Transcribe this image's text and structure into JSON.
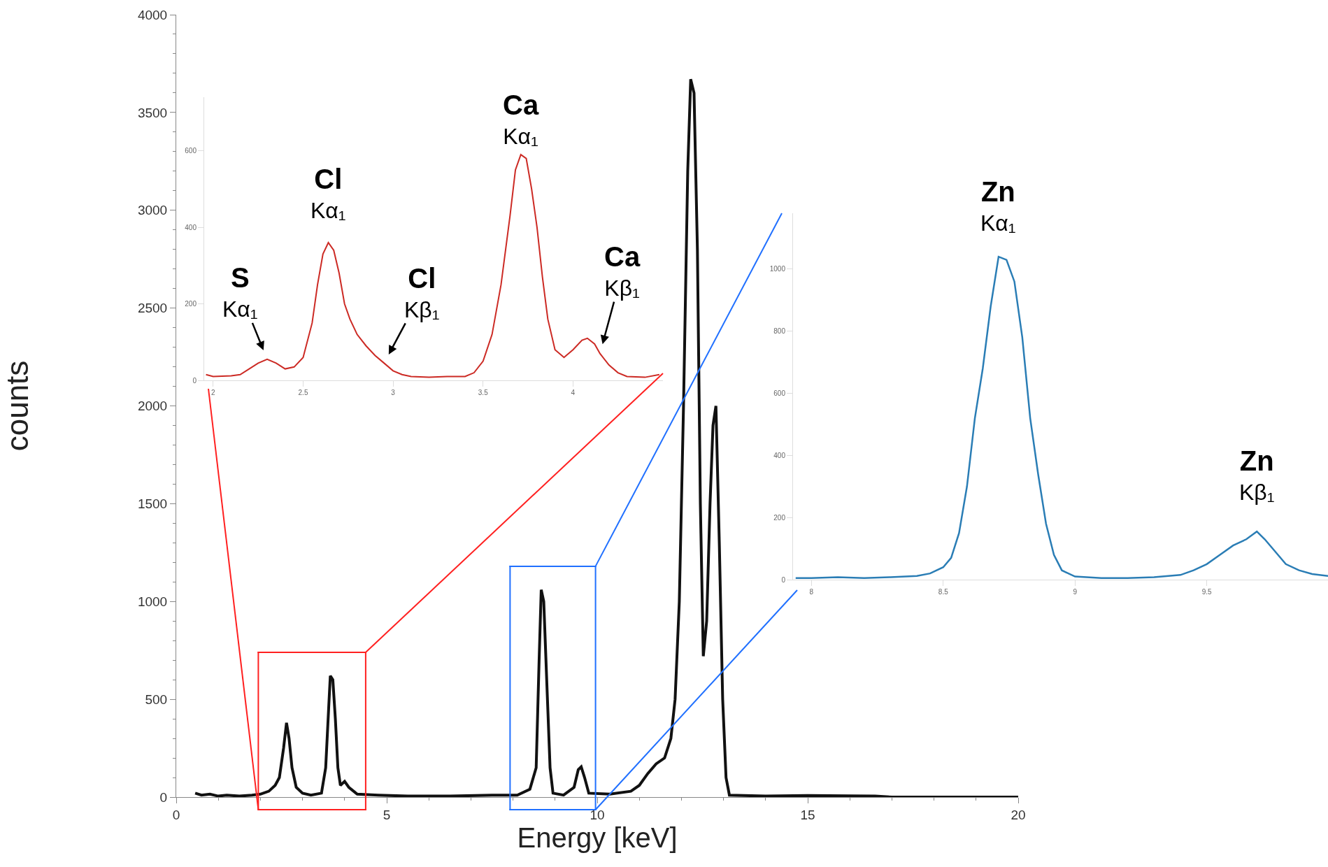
{
  "chart_data": [
    {
      "type": "line",
      "xlabel": "Energy [keV]",
      "ylabel": "counts",
      "color": "#111111",
      "marker": "none",
      "grid": false,
      "x": [
        0.45,
        0.6,
        0.8,
        1.0,
        1.2,
        1.5,
        1.8,
        2.0,
        2.2,
        2.35,
        2.45,
        2.55,
        2.62,
        2.68,
        2.75,
        2.85,
        3.0,
        3.2,
        3.45,
        3.55,
        3.62,
        3.66,
        3.72,
        3.78,
        3.84,
        3.9,
        4.0,
        4.1,
        4.3,
        4.8,
        5.5,
        6.5,
        7.5,
        8.1,
        8.4,
        8.55,
        8.62,
        8.67,
        8.73,
        8.8,
        8.88,
        8.95,
        9.2,
        9.45,
        9.55,
        9.62,
        9.7,
        9.8,
        10.3,
        10.8,
        11.0,
        11.2,
        11.4,
        11.6,
        11.75,
        11.85,
        11.95,
        12.05,
        12.15,
        12.22,
        12.3,
        12.38,
        12.45,
        12.52,
        12.6,
        12.68,
        12.75,
        12.82,
        12.9,
        12.98,
        13.06,
        13.14,
        14,
        15,
        16,
        16.6,
        17,
        20
      ],
      "values": [
        20,
        10,
        15,
        5,
        10,
        5,
        10,
        15,
        30,
        60,
        100,
        250,
        380,
        300,
        150,
        50,
        20,
        10,
        20,
        150,
        450,
        620,
        600,
        400,
        150,
        60,
        80,
        50,
        15,
        10,
        5,
        5,
        10,
        10,
        40,
        150,
        700,
        1060,
        1000,
        600,
        150,
        20,
        10,
        50,
        140,
        155,
        100,
        20,
        15,
        30,
        60,
        120,
        170,
        200,
        300,
        500,
        1000,
        2000,
        3200,
        3670,
        3600,
        2800,
        1500,
        720,
        900,
        1500,
        1900,
        2000,
        1300,
        500,
        100,
        10,
        5,
        8,
        6,
        5,
        0,
        0
      ],
      "xlim": [
        0,
        20
      ],
      "ylim": [
        0,
        4000
      ],
      "xticks": [
        0,
        {
          "value": 1,
          "label": null
        },
        {
          "value": 2,
          "label": null
        },
        {
          "value": 3,
          "label": null
        },
        {
          "value": 4,
          "label": null
        },
        5,
        {
          "value": 6,
          "label": null
        },
        {
          "value": 7,
          "label": null
        },
        {
          "value": 8,
          "label": null
        },
        {
          "value": 9,
          "label": null
        },
        10,
        {
          "value": 11,
          "label": null
        },
        {
          "value": 12,
          "label": null
        },
        {
          "value": 13,
          "label": null
        },
        {
          "value": 14,
          "label": null
        },
        15,
        {
          "value": 16,
          "label": null
        },
        {
          "value": 17,
          "label": null
        },
        {
          "value": 18,
          "label": null
        },
        {
          "value": 19,
          "label": null
        },
        20
      ],
      "yticks": [
        0,
        {
          "value": 100,
          "label": null
        },
        {
          "value": 200,
          "label": null
        },
        {
          "value": 300,
          "label": null
        },
        {
          "value": 400,
          "label": null
        },
        500,
        {
          "value": 600,
          "label": null
        },
        {
          "value": 700,
          "label": null
        },
        {
          "value": 800,
          "label": null
        },
        {
          "value": 900,
          "label": null
        },
        1000,
        {
          "value": 1100,
          "label": null
        },
        {
          "value": 1200,
          "label": null
        },
        {
          "value": 1300,
          "label": null
        },
        {
          "value": 1400,
          "label": null
        },
        1500,
        {
          "value": 1600,
          "label": null
        },
        {
          "value": 1700,
          "label": null
        },
        {
          "value": 1800,
          "label": null
        },
        {
          "value": 1900,
          "label": null
        },
        2000,
        {
          "value": 2100,
          "label": null
        },
        {
          "value": 2200,
          "label": null
        },
        {
          "value": 2300,
          "label": null
        },
        {
          "value": 2400,
          "label": null
        },
        2500,
        {
          "value": 2600,
          "label": null
        },
        {
          "value": 2700,
          "label": null
        },
        {
          "value": 2800,
          "label": null
        },
        {
          "value": 2900,
          "label": null
        },
        3000,
        {
          "value": 3100,
          "label": null
        },
        {
          "value": 3200,
          "label": null
        },
        {
          "value": 3300,
          "label": null
        },
        {
          "value": 3400,
          "label": null
        },
        3500,
        {
          "value": 3600,
          "label": null
        },
        {
          "value": 3700,
          "label": null
        },
        {
          "value": 3800,
          "label": null
        },
        {
          "value": 3900,
          "label": null
        },
        4000
      ]
    },
    {
      "type": "line",
      "color": "#cc2a24",
      "marker": "none",
      "grid": false,
      "x": [
        1.96,
        2.0,
        2.1,
        2.15,
        2.2,
        2.25,
        2.3,
        2.35,
        2.4,
        2.45,
        2.5,
        2.55,
        2.58,
        2.61,
        2.64,
        2.67,
        2.7,
        2.73,
        2.76,
        2.8,
        2.85,
        2.9,
        2.95,
        3.0,
        3.05,
        3.1,
        3.2,
        3.3,
        3.4,
        3.45,
        3.5,
        3.55,
        3.6,
        3.65,
        3.68,
        3.71,
        3.74,
        3.77,
        3.8,
        3.83,
        3.86,
        3.9,
        3.95,
        4.0,
        4.05,
        4.08,
        4.12,
        4.15,
        4.2,
        4.25,
        4.3,
        4.4,
        4.48
      ],
      "values": [
        15,
        10,
        12,
        15,
        30,
        45,
        55,
        45,
        30,
        35,
        60,
        150,
        250,
        330,
        360,
        340,
        280,
        200,
        160,
        120,
        90,
        65,
        45,
        25,
        15,
        10,
        8,
        10,
        10,
        20,
        50,
        120,
        250,
        430,
        550,
        590,
        580,
        500,
        400,
        270,
        160,
        80,
        60,
        80,
        105,
        110,
        95,
        70,
        40,
        20,
        10,
        8,
        15
      ],
      "xlim": [
        1.95,
        4.5
      ],
      "ylim": [
        0,
        740
      ],
      "xticks": [
        2,
        2.5,
        3,
        3.5,
        4
      ],
      "yticks": [
        0,
        200,
        400,
        600
      ],
      "annotations": [
        {
          "text": "S\nKα₁",
          "x": 2.3,
          "y": 55
        },
        {
          "text": "Cl\nKα₁",
          "x": 2.64,
          "y": 360
        },
        {
          "text": "Cl\nKβ₁",
          "x": 2.95,
          "y": 45
        },
        {
          "text": "Ca\nKα₁",
          "x": 3.71,
          "y": 590
        },
        {
          "text": "Ca\nKβ₁",
          "x": 4.15,
          "y": 70
        }
      ]
    },
    {
      "type": "line",
      "color": "#2a7db5",
      "marker": "none",
      "grid": false,
      "x": [
        7.94,
        8.0,
        8.1,
        8.2,
        8.3,
        8.4,
        8.45,
        8.5,
        8.53,
        8.56,
        8.59,
        8.62,
        8.65,
        8.68,
        8.71,
        8.74,
        8.77,
        8.8,
        8.83,
        8.86,
        8.89,
        8.92,
        8.95,
        9.0,
        9.1,
        9.2,
        9.3,
        9.4,
        9.45,
        9.5,
        9.55,
        9.6,
        9.65,
        9.69,
        9.72,
        9.76,
        9.8,
        9.85,
        9.9,
        9.96
      ],
      "values": [
        5,
        5,
        8,
        5,
        8,
        12,
        20,
        40,
        70,
        150,
        300,
        520,
        680,
        880,
        1040,
        1030,
        960,
        780,
        520,
        340,
        180,
        80,
        30,
        10,
        5,
        5,
        8,
        15,
        30,
        50,
        80,
        110,
        130,
        155,
        130,
        90,
        50,
        30,
        18,
        12
      ],
      "xlim": [
        7.93,
        9.96
      ],
      "ylim": [
        0,
        1180
      ],
      "xticks": [
        8,
        8.5,
        9,
        9.5
      ],
      "yticks": [
        0,
        200,
        400,
        600,
        800,
        1000
      ],
      "annotations": [
        {
          "text": "Zn\nKα₁",
          "x": 8.71,
          "y": 1040
        },
        {
          "text": "Zn\nKβ₁",
          "x": 9.69,
          "y": 155
        }
      ]
    }
  ]
}
